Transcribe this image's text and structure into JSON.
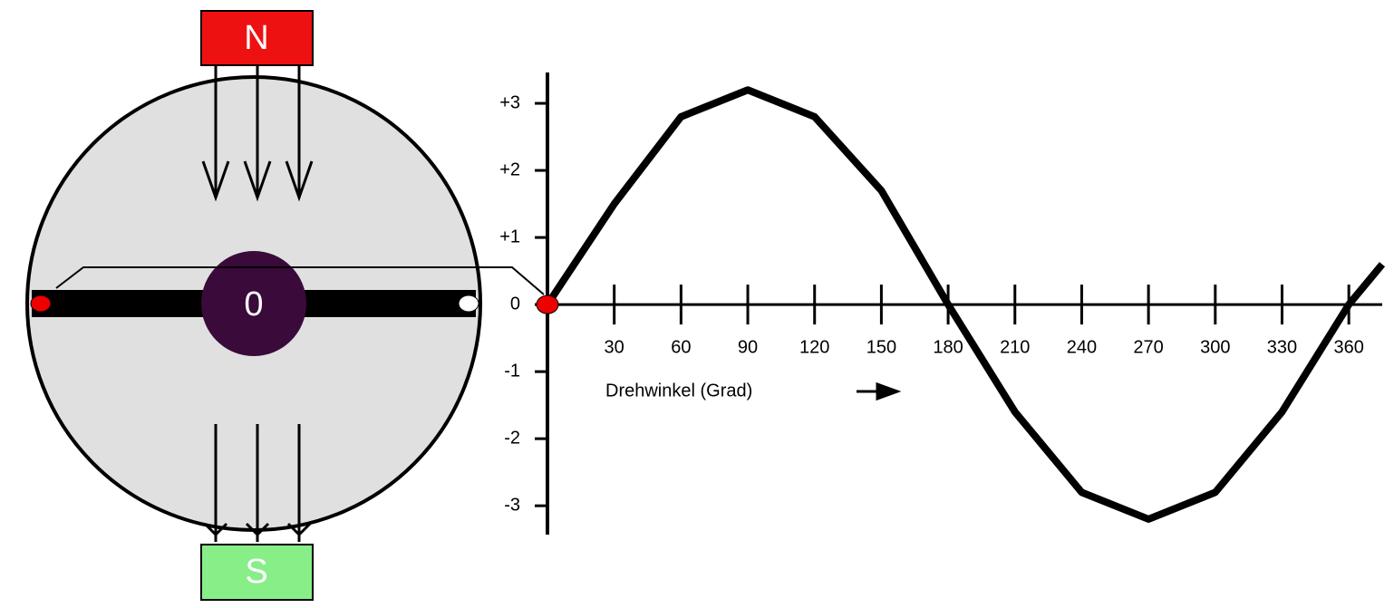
{
  "diagram": {
    "north": "N",
    "south": "S",
    "rotor": "0"
  },
  "chart_data": {
    "type": "line",
    "x_label": "Drehwinkel (Grad)",
    "x": [
      0,
      30,
      60,
      90,
      120,
      150,
      180,
      210,
      240,
      270,
      300,
      330,
      360,
      375
    ],
    "series": [
      {
        "color": "#000000",
        "values": [
          0,
          1.5,
          2.8,
          3.2,
          2.8,
          1.7,
          0,
          -1.6,
          -2.8,
          -3.2,
          -2.8,
          -1.6,
          0,
          0.6
        ]
      }
    ],
    "xlim": [
      0,
      375
    ],
    "ylim": [
      -3.43,
      3.46
    ],
    "xticks": [
      30,
      60,
      90,
      120,
      150,
      180,
      210,
      240,
      270,
      300,
      330,
      360
    ],
    "yticks": [
      {
        "value": 3,
        "label": "+3"
      },
      {
        "value": 2,
        "label": "+2"
      },
      {
        "value": 1,
        "label": "+1"
      },
      0,
      -1,
      -2,
      -3
    ]
  }
}
